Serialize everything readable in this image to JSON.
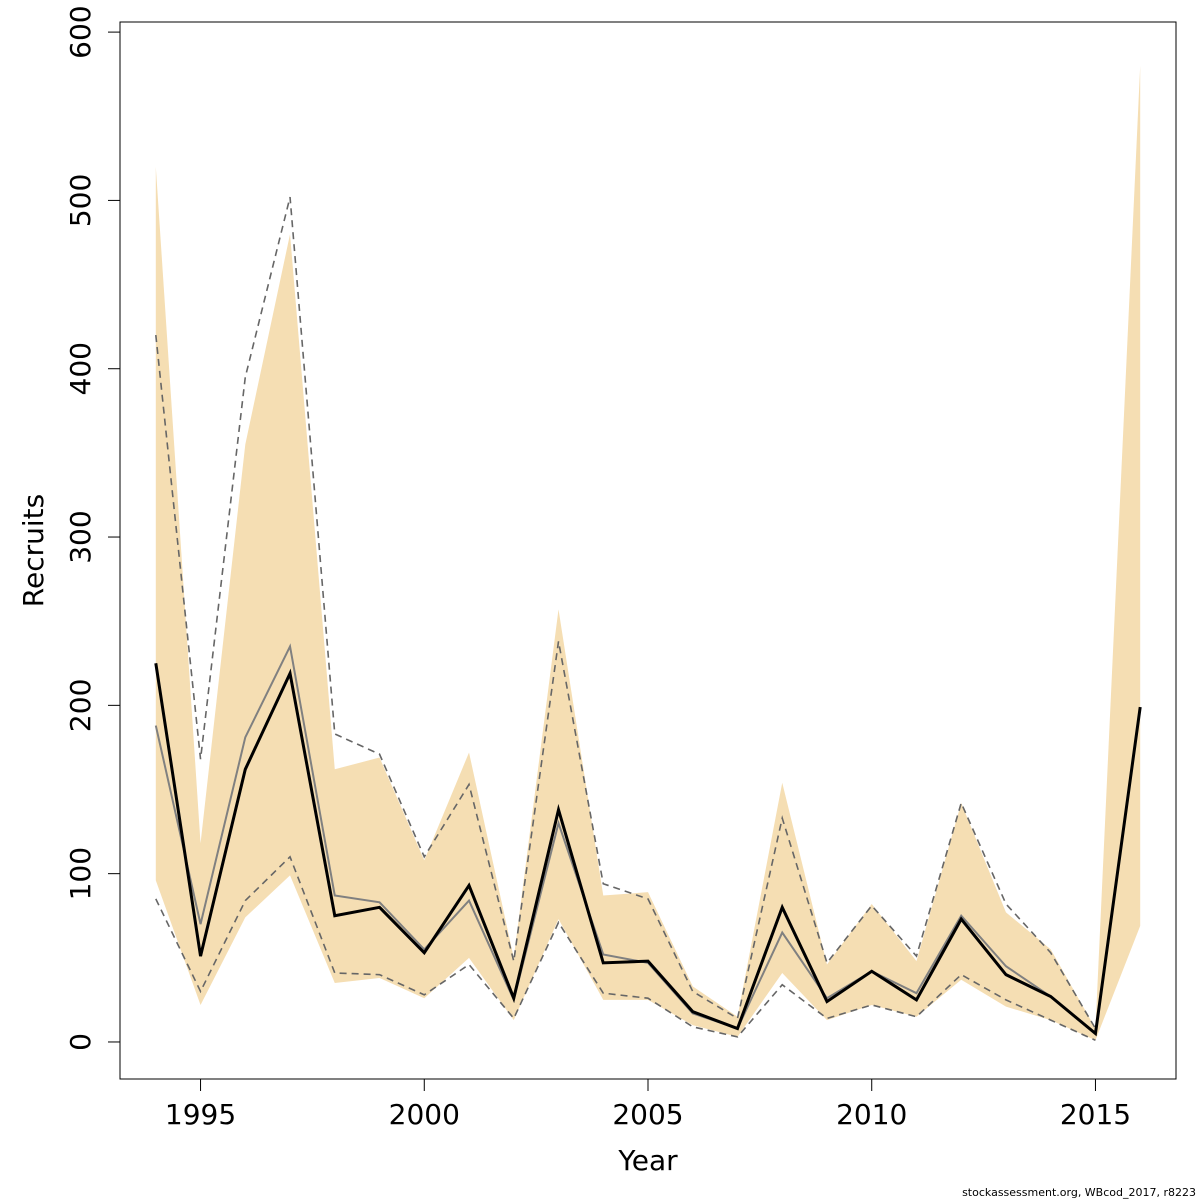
{
  "chart_data": {
    "type": "line",
    "xlabel": "Year",
    "ylabel": "Recruits",
    "xlim": [
      1993.2,
      2016.8
    ],
    "ylim": [
      -22,
      606
    ],
    "x_ticks": [
      1995,
      2000,
      2005,
      2010,
      2015
    ],
    "y_ticks": [
      0,
      100,
      200,
      300,
      400,
      500,
      600
    ],
    "grid": false,
    "legend": "none",
    "colors": {
      "band": "#f5deb3",
      "estimate": "#000000",
      "observed": "#808080",
      "dashed": "#666666"
    },
    "x": [
      1994,
      1995,
      1996,
      1997,
      1998,
      1999,
      2000,
      2001,
      2002,
      2003,
      2004,
      2005,
      2006,
      2007,
      2008,
      2009,
      2010,
      2011,
      2012,
      2013,
      2014,
      2015,
      2016
    ],
    "series": [
      {
        "role": "band-upper",
        "values": [
          520,
          118,
          355,
          480,
          162,
          169,
          108,
          172,
          50,
          257,
          87,
          89,
          33,
          15,
          154,
          46,
          82,
          48,
          142,
          77,
          55,
          8,
          580
        ]
      },
      {
        "role": "band-lower",
        "values": [
          96,
          22,
          74,
          99,
          35,
          38,
          26,
          50,
          13,
          73,
          25,
          25,
          10,
          3,
          41,
          13,
          22,
          15,
          37,
          21,
          13,
          1,
          69
        ]
      },
      {
        "role": "estimate",
        "values": [
          225,
          51,
          162,
          219,
          75,
          80,
          53,
          93,
          26,
          138,
          47,
          48,
          18,
          8,
          80,
          24,
          42,
          25,
          73,
          40,
          27,
          5,
          199
        ]
      },
      {
        "role": "observed-median",
        "values": [
          188,
          70,
          181,
          235,
          87,
          83,
          55,
          84,
          25,
          130,
          52,
          47,
          17,
          8,
          65,
          26,
          42,
          29,
          75,
          45,
          27,
          5,
          null
        ]
      },
      {
        "role": "observed-upper",
        "values": [
          420,
          168,
          395,
          502,
          183,
          171,
          110,
          153,
          48,
          238,
          94,
          85,
          30,
          14,
          133,
          47,
          81,
          51,
          142,
          82,
          53,
          8,
          null
        ]
      },
      {
        "role": "observed-lower",
        "values": [
          85,
          30,
          84,
          110,
          41,
          40,
          28,
          46,
          14,
          71,
          29,
          26,
          9,
          3,
          34,
          14,
          22,
          15,
          40,
          25,
          13,
          1,
          null
        ]
      }
    ]
  },
  "credit": "stockassessment.org, WBcod_2017, r8223"
}
